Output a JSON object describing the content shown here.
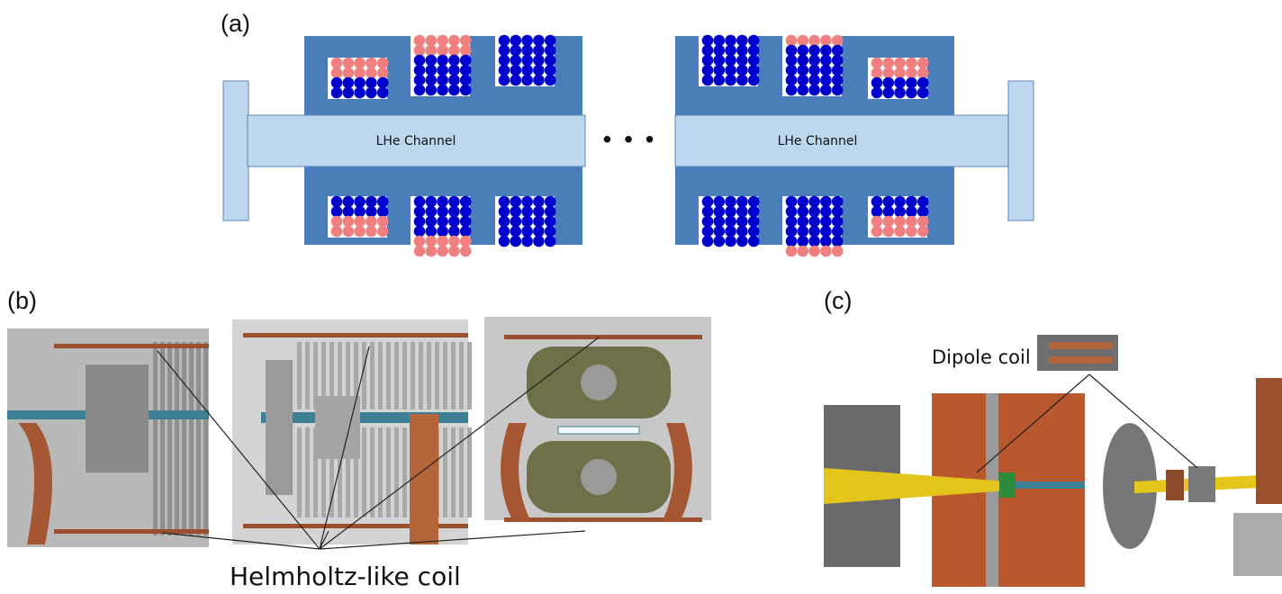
{
  "panels": [
    {
      "label": "(a)",
      "channel_labels": [
        "LHe Channel",
        "LHe Channel"
      ],
      "ellipsis": "• • •"
    },
    {
      "label": "(b)",
      "callout": "Helmholtz-like coil"
    },
    {
      "label": "(c)",
      "callout": "Dipole coil"
    }
  ]
}
